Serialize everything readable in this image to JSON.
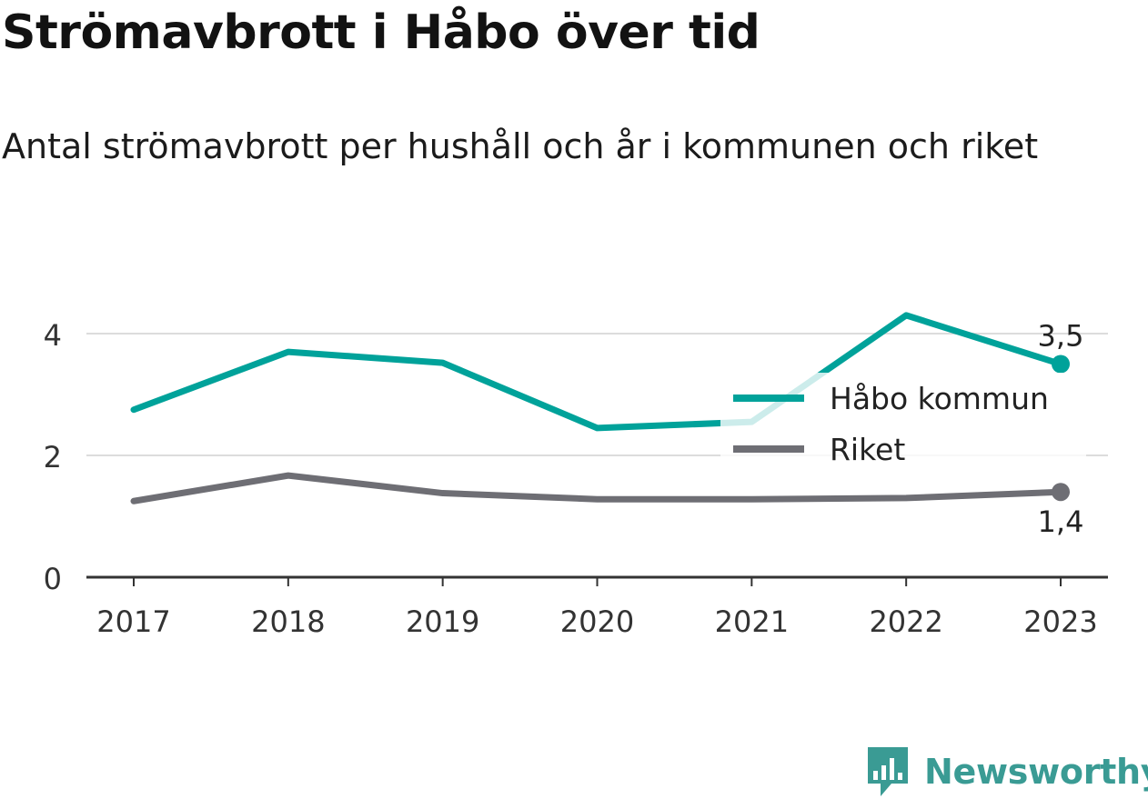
{
  "header": {
    "title": "Strömavbrott i Håbo över tid",
    "subtitle": "Antal strömavbrott per hushåll och år i kommunen och riket"
  },
  "chart_data": {
    "type": "line",
    "title": "Strömavbrott i Håbo över tid",
    "subtitle": "Antal strömavbrott per hushåll och år i kommunen och riket",
    "xlabel": "",
    "ylabel": "",
    "x": [
      "2017",
      "2018",
      "2019",
      "2020",
      "2021",
      "2022",
      "2023"
    ],
    "ylim": [
      0,
      4.5
    ],
    "yticks": [
      0,
      2,
      4
    ],
    "ytick_labels": [
      "0",
      "2",
      "4"
    ],
    "grid": true,
    "legend_position": "right",
    "series": [
      {
        "name": "Håbo kommun",
        "color": "#00a29a",
        "values": [
          2.75,
          3.7,
          3.52,
          2.45,
          2.55,
          4.3,
          3.5
        ],
        "end_label": "3,5"
      },
      {
        "name": "Riket",
        "color": "#6e6e74",
        "values": [
          1.25,
          1.67,
          1.38,
          1.28,
          1.28,
          1.3,
          1.4
        ],
        "end_label": "1,4"
      }
    ]
  },
  "branding": {
    "name": "Newsworthy",
    "color": "#3a9b94",
    "icon": "bar-chart-speech-bubble-icon"
  }
}
